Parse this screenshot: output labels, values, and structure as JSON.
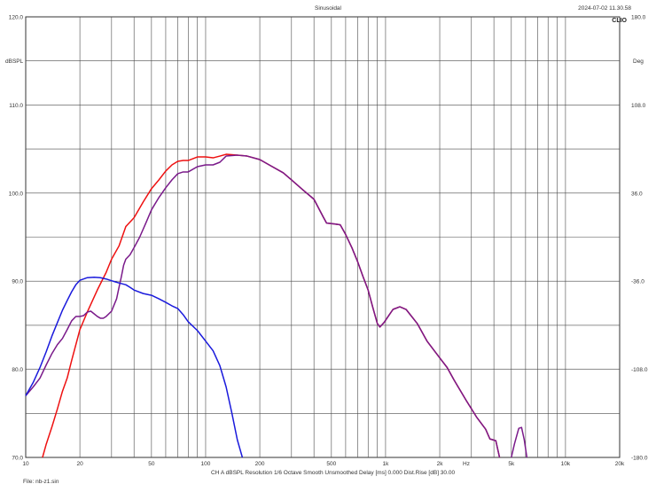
{
  "header": {
    "title": "Sinusoidal",
    "datetime": "2024-07-02 11.30.58",
    "brand": "CLIO"
  },
  "footer": {
    "status": "CH A   dBSPL   Resolution 1/6 Octave   Smooth Unsmoothed   Delay [ms] 0.000   Dist.Rise [dB] 30.00",
    "file": "File: nb-z1.sin"
  },
  "chart_data": {
    "type": "line",
    "title": "Sinusoidal",
    "xscale": "log",
    "xlim": [
      10,
      20000
    ],
    "ylim": [
      70,
      120
    ],
    "y2lim": [
      -180,
      180
    ],
    "ylabel": "dBSPL",
    "y2label": "Deg",
    "xunit": "Hz",
    "grid": true,
    "x_ticks": [
      10,
      20,
      50,
      100,
      200,
      500,
      1000,
      2000,
      5000,
      10000,
      20000
    ],
    "x_tick_labels": [
      "10",
      "20",
      "50",
      "100",
      "200",
      "500",
      "1k",
      "2k",
      "5k",
      "10k",
      "20k"
    ],
    "y_ticks": [
      70,
      80,
      90,
      100,
      110,
      120
    ],
    "y_tick_labels": [
      "70.0",
      "80.0",
      "90.0",
      "100.0",
      "110.0",
      "120.0"
    ],
    "y2_ticks": [
      -180,
      -108,
      -36,
      36,
      108,
      180
    ],
    "y2_tick_labels": [
      "-180.0",
      "-108.0",
      "-36.0",
      "36.0",
      "108.0",
      "180.0"
    ],
    "colors": {
      "red": "#ee1111",
      "blue": "#1a1adc",
      "purple": "#7a1a8a",
      "grid": "#4a4a4a"
    },
    "series": [
      {
        "color": "red",
        "points": [
          [
            12.4,
            70
          ],
          [
            13,
            71.5
          ],
          [
            14,
            73.5
          ],
          [
            15,
            75.5
          ],
          [
            16,
            77.5
          ],
          [
            17,
            79
          ],
          [
            18,
            81
          ],
          [
            20,
            84.5
          ],
          [
            22,
            86.5
          ],
          [
            25,
            89
          ],
          [
            28,
            91
          ],
          [
            30,
            92.5
          ],
          [
            33,
            94
          ],
          [
            36,
            96.2
          ],
          [
            40,
            97.2
          ],
          [
            45,
            99
          ],
          [
            50,
            100.5
          ],
          [
            55,
            101.5
          ],
          [
            60,
            102.5
          ],
          [
            65,
            103.2
          ],
          [
            70,
            103.6
          ],
          [
            75,
            103.7
          ],
          [
            80,
            103.7
          ],
          [
            90,
            104.1
          ],
          [
            100,
            104.1
          ],
          [
            110,
            104
          ],
          [
            120,
            104.2
          ],
          [
            130,
            104.4
          ],
          [
            150,
            104.3
          ],
          [
            170,
            104.2
          ],
          [
            200,
            103.8
          ],
          [
            230,
            103.1
          ],
          [
            270,
            102.3
          ],
          [
            300,
            101.5
          ],
          [
            350,
            100.3
          ],
          [
            400,
            99.3
          ],
          [
            450,
            97.3
          ],
          [
            470,
            96.6
          ],
          [
            520,
            96.5
          ],
          [
            560,
            96.4
          ],
          [
            600,
            95.3
          ],
          [
            650,
            93.8
          ],
          [
            700,
            92.2
          ],
          [
            750,
            90.5
          ],
          [
            800,
            89
          ],
          [
            850,
            87
          ],
          [
            900,
            85.2
          ],
          [
            930,
            84.8
          ],
          [
            980,
            85.3
          ],
          [
            1050,
            86.2
          ],
          [
            1100,
            86.8
          ],
          [
            1200,
            87.1
          ],
          [
            1300,
            86.8
          ],
          [
            1500,
            85.2
          ],
          [
            1700,
            83.2
          ],
          [
            2000,
            81.3
          ],
          [
            2200,
            80.2
          ],
          [
            2400,
            78.8
          ],
          [
            2800,
            76.5
          ],
          [
            3200,
            74.6
          ],
          [
            3600,
            73.2
          ],
          [
            3800,
            72.1
          ],
          [
            4100,
            71.9
          ],
          [
            4300,
            70
          ]
        ]
      },
      {
        "color": "purple",
        "points": [
          [
            10,
            77
          ],
          [
            11,
            78
          ],
          [
            12,
            79
          ],
          [
            13,
            80.5
          ],
          [
            14,
            81.8
          ],
          [
            15,
            82.8
          ],
          [
            16,
            83.5
          ],
          [
            17,
            84.5
          ],
          [
            18,
            85.5
          ],
          [
            19,
            86
          ],
          [
            20,
            86
          ],
          [
            21,
            86.1
          ],
          [
            22,
            86.5
          ],
          [
            23,
            86.6
          ],
          [
            24,
            86.3
          ],
          [
            25,
            86
          ],
          [
            26,
            85.8
          ],
          [
            27,
            85.8
          ],
          [
            28,
            86
          ],
          [
            30,
            86.6
          ],
          [
            32,
            88
          ],
          [
            33,
            89.3
          ],
          [
            34,
            90.5
          ],
          [
            35,
            91.8
          ],
          [
            36,
            92.5
          ],
          [
            38,
            93
          ],
          [
            40,
            93.8
          ],
          [
            43,
            95
          ],
          [
            47,
            96.8
          ],
          [
            50,
            98.1
          ],
          [
            55,
            99.5
          ],
          [
            60,
            100.6
          ],
          [
            65,
            101.5
          ],
          [
            70,
            102.2
          ],
          [
            75,
            102.4
          ],
          [
            80,
            102.4
          ],
          [
            90,
            103
          ],
          [
            100,
            103.2
          ],
          [
            110,
            103.2
          ],
          [
            120,
            103.5
          ],
          [
            130,
            104.2
          ],
          [
            150,
            104.3
          ],
          [
            170,
            104.2
          ],
          [
            200,
            103.8
          ],
          [
            230,
            103.1
          ],
          [
            270,
            102.3
          ],
          [
            300,
            101.5
          ],
          [
            350,
            100.3
          ],
          [
            400,
            99.3
          ],
          [
            450,
            97.3
          ],
          [
            470,
            96.6
          ],
          [
            520,
            96.5
          ],
          [
            560,
            96.4
          ],
          [
            600,
            95.3
          ],
          [
            650,
            93.8
          ],
          [
            700,
            92.2
          ],
          [
            750,
            90.5
          ],
          [
            800,
            89
          ],
          [
            850,
            87
          ],
          [
            900,
            85.2
          ],
          [
            930,
            84.8
          ],
          [
            980,
            85.3
          ],
          [
            1050,
            86.2
          ],
          [
            1100,
            86.8
          ],
          [
            1200,
            87.1
          ],
          [
            1300,
            86.8
          ],
          [
            1500,
            85.2
          ],
          [
            1700,
            83.2
          ],
          [
            2000,
            81.3
          ],
          [
            2200,
            80.2
          ],
          [
            2400,
            78.8
          ],
          [
            2800,
            76.5
          ],
          [
            3200,
            74.6
          ],
          [
            3600,
            73.2
          ],
          [
            3800,
            72.1
          ],
          [
            4100,
            71.9
          ],
          [
            4300,
            70
          ]
        ]
      },
      {
        "color": "purple",
        "points": [
          [
            5000,
            70
          ],
          [
            5200,
            71.5
          ],
          [
            5500,
            73.3
          ],
          [
            5700,
            73.4
          ],
          [
            5900,
            72
          ],
          [
            6100,
            70
          ]
        ]
      },
      {
        "color": "blue",
        "points": [
          [
            10,
            77
          ],
          [
            11,
            78.5
          ],
          [
            12,
            80.2
          ],
          [
            13,
            82
          ],
          [
            14,
            83.8
          ],
          [
            15,
            85.3
          ],
          [
            16,
            86.7
          ],
          [
            17,
            87.8
          ],
          [
            18,
            88.8
          ],
          [
            19,
            89.6
          ],
          [
            20,
            90.1
          ],
          [
            22,
            90.4
          ],
          [
            24,
            90.45
          ],
          [
            26,
            90.4
          ],
          [
            28,
            90.25
          ],
          [
            30,
            90.05
          ],
          [
            33,
            89.8
          ],
          [
            36,
            89.6
          ],
          [
            38,
            89.3
          ],
          [
            40,
            89.0
          ],
          [
            45,
            88.6
          ],
          [
            50,
            88.4
          ],
          [
            55,
            88.0
          ],
          [
            60,
            87.6
          ],
          [
            65,
            87.2
          ],
          [
            70,
            86.9
          ],
          [
            75,
            86.2
          ],
          [
            80,
            85.4
          ],
          [
            90,
            84.4
          ],
          [
            100,
            83.2
          ],
          [
            110,
            82.1
          ],
          [
            120,
            80.4
          ],
          [
            130,
            78
          ],
          [
            140,
            75
          ],
          [
            150,
            72
          ],
          [
            160,
            70
          ]
        ]
      }
    ]
  }
}
